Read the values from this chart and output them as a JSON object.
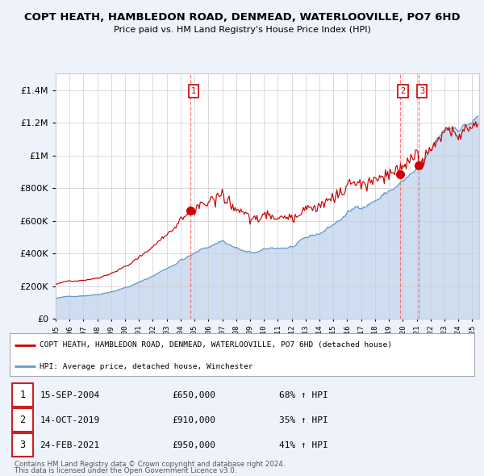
{
  "title": "COPT HEATH, HAMBLEDON ROAD, DENMEAD, WATERLOOVILLE, PO7 6HD",
  "subtitle": "Price paid vs. HM Land Registry's House Price Index (HPI)",
  "red_label": "COPT HEATH, HAMBLEDON ROAD, DENMEAD, WATERLOOVILLE, PO7 6HD (detached house)",
  "blue_label": "HPI: Average price, detached house, Winchester",
  "transactions": [
    {
      "num": 1,
      "date": "15-SEP-2004",
      "price": "£650,000",
      "change": "68% ↑ HPI",
      "year": 2004.71
    },
    {
      "num": 2,
      "date": "14-OCT-2019",
      "price": "£910,000",
      "change": "35% ↑ HPI",
      "year": 2019.79
    },
    {
      "num": 3,
      "date": "24-FEB-2021",
      "price": "£950,000",
      "change": "41% ↑ HPI",
      "year": 2021.15
    }
  ],
  "footer1": "Contains HM Land Registry data © Crown copyright and database right 2024.",
  "footer2": "This data is licensed under the Open Government Licence v3.0.",
  "ylim_max": 1500000,
  "xlim_start": 1995.0,
  "xlim_end": 2025.5,
  "background_color": "#eef2fb",
  "plot_bg": "#ffffff",
  "red_color": "#cc0000",
  "blue_color": "#6699cc",
  "blue_fill_color": "#c8d8f0",
  "grid_color": "#cccccc",
  "dashed_color": "#ff6666"
}
